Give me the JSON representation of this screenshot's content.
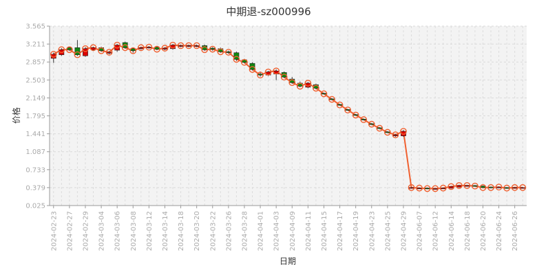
{
  "chart_data": {
    "type": "candlestick",
    "title": "中期退-sz000996",
    "xlabel": "日期",
    "ylabel": "价格",
    "ylim": [
      0.025,
      3.565
    ],
    "yticks": [
      "3.565",
      "3.211",
      "2.857",
      "2.503",
      "2.149",
      "1.795",
      "1.441",
      "1.087",
      "0.733",
      "0.379",
      "0.025"
    ],
    "x_tick_labels": [
      "2024-02-23",
      "2024-02-27",
      "2024-02-29",
      "2024-03-04",
      "2024-03-06",
      "2024-03-08",
      "2024-03-12",
      "2024-03-14",
      "2024-03-18",
      "2024-03-20",
      "2024-03-22",
      "2024-03-26",
      "2024-03-28",
      "2024-04-01",
      "2024-04-03",
      "2024-04-09",
      "2024-04-11",
      "2024-04-15",
      "2024-04-17",
      "2024-04-19",
      "2024-04-23",
      "2024-04-25",
      "2024-04-29",
      "2024-06-07",
      "2024-06-12",
      "2024-06-14",
      "2024-06-18",
      "2024-06-20",
      "2024-06-24",
      "2024-06-26"
    ],
    "grid": true,
    "colors": {
      "up": "#dd0000",
      "down": "#118811",
      "line": "#f06030",
      "wick": "#333333"
    },
    "candles": [
      {
        "o": 2.93,
        "c": 3.01,
        "h": 3.04,
        "l": 2.84
      },
      {
        "o": 3.0,
        "c": 3.1,
        "h": 3.13,
        "l": 2.98
      },
      {
        "o": 3.14,
        "c": 3.1,
        "h": 3.16,
        "l": 3.08
      },
      {
        "o": 3.14,
        "c": 3.0,
        "h": 3.29,
        "l": 2.98
      },
      {
        "o": 2.98,
        "c": 3.12,
        "h": 3.15,
        "l": 2.96
      },
      {
        "o": 3.1,
        "c": 3.14,
        "h": 3.16,
        "l": 3.08
      },
      {
        "o": 3.14,
        "c": 3.08,
        "h": 3.16,
        "l": 3.06
      },
      {
        "o": 3.03,
        "c": 3.05,
        "h": 3.07,
        "l": 3.01
      },
      {
        "o": 3.09,
        "c": 3.19,
        "h": 3.21,
        "l": 3.06
      },
      {
        "o": 3.24,
        "c": 3.14,
        "h": 3.26,
        "l": 3.12
      },
      {
        "o": 3.12,
        "c": 3.08,
        "h": 3.14,
        "l": 3.04
      },
      {
        "o": 3.12,
        "c": 3.14,
        "h": 3.16,
        "l": 3.1
      },
      {
        "o": 3.14,
        "c": 3.15,
        "h": 3.17,
        "l": 3.12
      },
      {
        "o": 3.15,
        "c": 3.11,
        "h": 3.17,
        "l": 3.09
      },
      {
        "o": 3.11,
        "c": 3.13,
        "h": 3.15,
        "l": 3.09
      },
      {
        "o": 3.12,
        "c": 3.19,
        "h": 3.21,
        "l": 3.1
      },
      {
        "o": 3.17,
        "c": 3.18,
        "h": 3.2,
        "l": 3.15
      },
      {
        "o": 3.17,
        "c": 3.18,
        "h": 3.2,
        "l": 3.15
      },
      {
        "o": 3.17,
        "c": 3.18,
        "h": 3.2,
        "l": 3.15
      },
      {
        "o": 3.18,
        "c": 3.1,
        "h": 3.2,
        "l": 3.08
      },
      {
        "o": 3.13,
        "c": 3.11,
        "h": 3.15,
        "l": 3.08
      },
      {
        "o": 3.12,
        "c": 3.06,
        "h": 3.14,
        "l": 3.04
      },
      {
        "o": 3.06,
        "c": 3.05,
        "h": 3.08,
        "l": 3.02
      },
      {
        "o": 3.04,
        "c": 2.91,
        "h": 3.06,
        "l": 2.88
      },
      {
        "o": 2.9,
        "c": 2.85,
        "h": 2.92,
        "l": 2.83
      },
      {
        "o": 2.83,
        "c": 2.71,
        "h": 2.85,
        "l": 2.69
      },
      {
        "o": 2.62,
        "c": 2.6,
        "h": 2.67,
        "l": 2.57
      },
      {
        "o": 2.6,
        "c": 2.66,
        "h": 2.68,
        "l": 2.58
      },
      {
        "o": 2.62,
        "c": 2.68,
        "h": 2.71,
        "l": 2.5
      },
      {
        "o": 2.65,
        "c": 2.56,
        "h": 2.67,
        "l": 2.54
      },
      {
        "o": 2.52,
        "c": 2.45,
        "h": 2.56,
        "l": 2.43
      },
      {
        "o": 2.44,
        "c": 2.38,
        "h": 2.47,
        "l": 2.36
      },
      {
        "o": 2.36,
        "c": 2.44,
        "h": 2.46,
        "l": 2.34
      },
      {
        "o": 2.41,
        "c": 2.34,
        "h": 2.43,
        "l": 2.32
      },
      {
        "o": 2.24,
        "c": 2.23,
        "h": 2.25,
        "l": 2.22
      },
      {
        "o": 2.13,
        "c": 2.12,
        "h": 2.14,
        "l": 2.11
      },
      {
        "o": 2.02,
        "c": 2.01,
        "h": 2.03,
        "l": 2.0
      },
      {
        "o": 1.92,
        "c": 1.91,
        "h": 1.93,
        "l": 1.9
      },
      {
        "o": 1.82,
        "c": 1.81,
        "h": 1.83,
        "l": 1.8
      },
      {
        "o": 1.73,
        "c": 1.72,
        "h": 1.74,
        "l": 1.71
      },
      {
        "o": 1.64,
        "c": 1.63,
        "h": 1.65,
        "l": 1.62
      },
      {
        "o": 1.56,
        "c": 1.55,
        "h": 1.57,
        "l": 1.54
      },
      {
        "o": 1.48,
        "c": 1.47,
        "h": 1.49,
        "l": 1.46
      },
      {
        "o": 1.4,
        "c": 1.42,
        "h": 1.44,
        "l": 1.38
      },
      {
        "o": 1.4,
        "c": 1.49,
        "h": 1.51,
        "l": 1.38
      },
      {
        "o": 0.37,
        "c": 0.38,
        "h": 0.39,
        "l": 0.36
      },
      {
        "o": 0.37,
        "c": 0.37,
        "h": 0.38,
        "l": 0.36
      },
      {
        "o": 0.37,
        "c": 0.36,
        "h": 0.38,
        "l": 0.35
      },
      {
        "o": 0.36,
        "c": 0.36,
        "h": 0.37,
        "l": 0.35
      },
      {
        "o": 0.36,
        "c": 0.37,
        "h": 0.38,
        "l": 0.35
      },
      {
        "o": 0.37,
        "c": 0.4,
        "h": 0.41,
        "l": 0.36
      },
      {
        "o": 0.39,
        "c": 0.42,
        "h": 0.43,
        "l": 0.38
      },
      {
        "o": 0.41,
        "c": 0.42,
        "h": 0.43,
        "l": 0.4
      },
      {
        "o": 0.42,
        "c": 0.41,
        "h": 0.43,
        "l": 0.4
      },
      {
        "o": 0.41,
        "c": 0.38,
        "h": 0.42,
        "l": 0.37
      },
      {
        "o": 0.39,
        "c": 0.38,
        "h": 0.4,
        "l": 0.37
      },
      {
        "o": 0.39,
        "c": 0.39,
        "h": 0.4,
        "l": 0.38
      },
      {
        "o": 0.38,
        "c": 0.37,
        "h": 0.39,
        "l": 0.36
      },
      {
        "o": 0.38,
        "c": 0.38,
        "h": 0.39,
        "l": 0.37
      },
      {
        "o": 0.38,
        "c": 0.38,
        "h": 0.39,
        "l": 0.37
      }
    ]
  }
}
